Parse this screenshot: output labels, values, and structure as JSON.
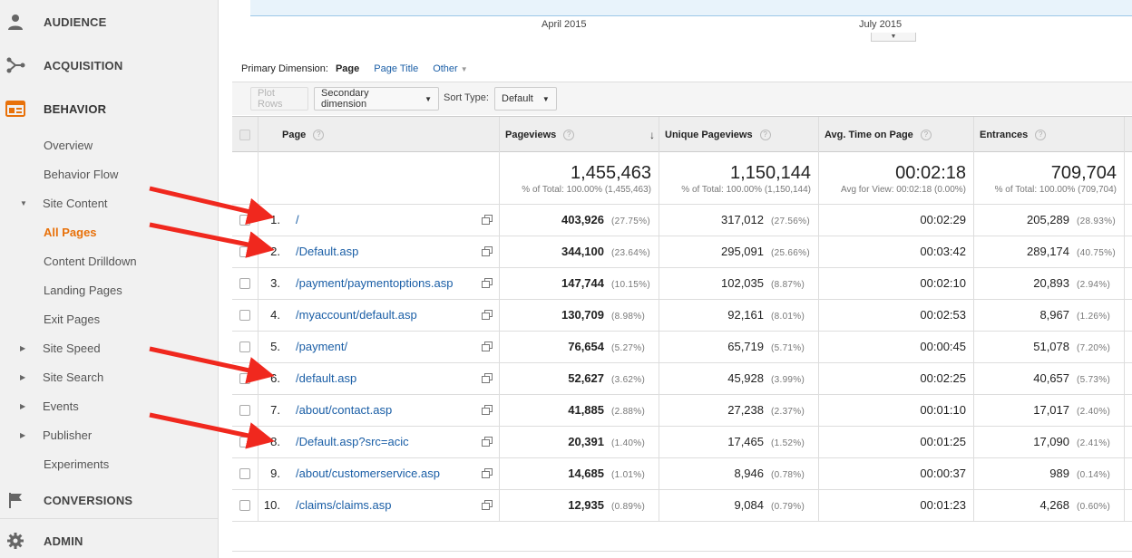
{
  "sidebar": {
    "sections": [
      {
        "label": "AUDIENCE",
        "icon": "person-icon"
      },
      {
        "label": "ACQUISITION",
        "icon": "acquisition-icon"
      },
      {
        "label": "BEHAVIOR",
        "icon": "behavior-icon"
      },
      {
        "label": "CONVERSIONS",
        "icon": "flag-icon"
      },
      {
        "label": "ADMIN",
        "icon": "gear-icon"
      }
    ],
    "items": [
      {
        "label": "Overview"
      },
      {
        "label": "Behavior Flow"
      },
      {
        "label": "Site Content",
        "expanded": true
      },
      {
        "label": "All Pages",
        "current": true
      },
      {
        "label": "Content Drilldown"
      },
      {
        "label": "Landing Pages"
      },
      {
        "label": "Exit Pages"
      },
      {
        "label": "Site Speed",
        "expanded": false
      },
      {
        "label": "Site Search",
        "expanded": false
      },
      {
        "label": "Events",
        "expanded": false
      },
      {
        "label": "Publisher",
        "expanded": false
      },
      {
        "label": "Experiments"
      }
    ]
  },
  "chart": {
    "x_labels": [
      "April 2015",
      "July 2015"
    ]
  },
  "dimension": {
    "label": "Primary Dimension:",
    "active": "Page",
    "options": [
      "Page Title",
      "Other"
    ]
  },
  "toolbar": {
    "plot_rows": "Plot Rows",
    "secondary_dimension": "Secondary dimension",
    "sort_type_label": "Sort Type:",
    "sort_type_value": "Default"
  },
  "table": {
    "columns": [
      "Page",
      "Pageviews",
      "Unique Pageviews",
      "Avg. Time on Page",
      "Entrances"
    ],
    "totals": [
      {
        "value": "1,455,463",
        "sub": "% of Total: 100.00% (1,455,463)"
      },
      {
        "value": "1,150,144",
        "sub": "% of Total: 100.00% (1,150,144)"
      },
      {
        "value": "00:02:18",
        "sub": "Avg for View: 00:02:18 (0.00%)"
      },
      {
        "value": "709,704",
        "sub": "% of Total: 100.00% (709,704)"
      }
    ],
    "rows": [
      {
        "idx": "1.",
        "page": "/",
        "pv": "403,926",
        "pv_pct": "(27.75%)",
        "upv": "317,012",
        "upv_pct": "(27.56%)",
        "time": "00:02:29",
        "ent": "205,289",
        "ent_pct": "(28.93%)"
      },
      {
        "idx": "2.",
        "page": "/Default.asp",
        "pv": "344,100",
        "pv_pct": "(23.64%)",
        "upv": "295,091",
        "upv_pct": "(25.66%)",
        "time": "00:03:42",
        "ent": "289,174",
        "ent_pct": "(40.75%)"
      },
      {
        "idx": "3.",
        "page": "/payment/paymentoptions.asp",
        "pv": "147,744",
        "pv_pct": "(10.15%)",
        "upv": "102,035",
        "upv_pct": "(8.87%)",
        "time": "00:02:10",
        "ent": "20,893",
        "ent_pct": "(2.94%)"
      },
      {
        "idx": "4.",
        "page": "/myaccount/default.asp",
        "pv": "130,709",
        "pv_pct": "(8.98%)",
        "upv": "92,161",
        "upv_pct": "(8.01%)",
        "time": "00:02:53",
        "ent": "8,967",
        "ent_pct": "(1.26%)"
      },
      {
        "idx": "5.",
        "page": "/payment/",
        "pv": "76,654",
        "pv_pct": "(5.27%)",
        "upv": "65,719",
        "upv_pct": "(5.71%)",
        "time": "00:00:45",
        "ent": "51,078",
        "ent_pct": "(7.20%)"
      },
      {
        "idx": "6.",
        "page": "/default.asp",
        "pv": "52,627",
        "pv_pct": "(3.62%)",
        "upv": "45,928",
        "upv_pct": "(3.99%)",
        "time": "00:02:25",
        "ent": "40,657",
        "ent_pct": "(5.73%)"
      },
      {
        "idx": "7.",
        "page": "/about/contact.asp",
        "pv": "41,885",
        "pv_pct": "(2.88%)",
        "upv": "27,238",
        "upv_pct": "(2.37%)",
        "time": "00:01:10",
        "ent": "17,017",
        "ent_pct": "(2.40%)"
      },
      {
        "idx": "8.",
        "page": "/Default.asp?src=acic",
        "pv": "20,391",
        "pv_pct": "(1.40%)",
        "upv": "17,465",
        "upv_pct": "(1.52%)",
        "time": "00:01:25",
        "ent": "17,090",
        "ent_pct": "(2.41%)"
      },
      {
        "idx": "9.",
        "page": "/about/customerservice.asp",
        "pv": "14,685",
        "pv_pct": "(1.01%)",
        "upv": "8,946",
        "upv_pct": "(0.78%)",
        "time": "00:00:37",
        "ent": "989",
        "ent_pct": "(0.14%)"
      },
      {
        "idx": "10.",
        "page": "/claims/claims.asp",
        "pv": "12,935",
        "pv_pct": "(0.89%)",
        "upv": "9,084",
        "upv_pct": "(0.79%)",
        "time": "00:01:23",
        "ent": "4,268",
        "ent_pct": "(0.60%)"
      }
    ]
  },
  "annotation_color": "#f0281e"
}
